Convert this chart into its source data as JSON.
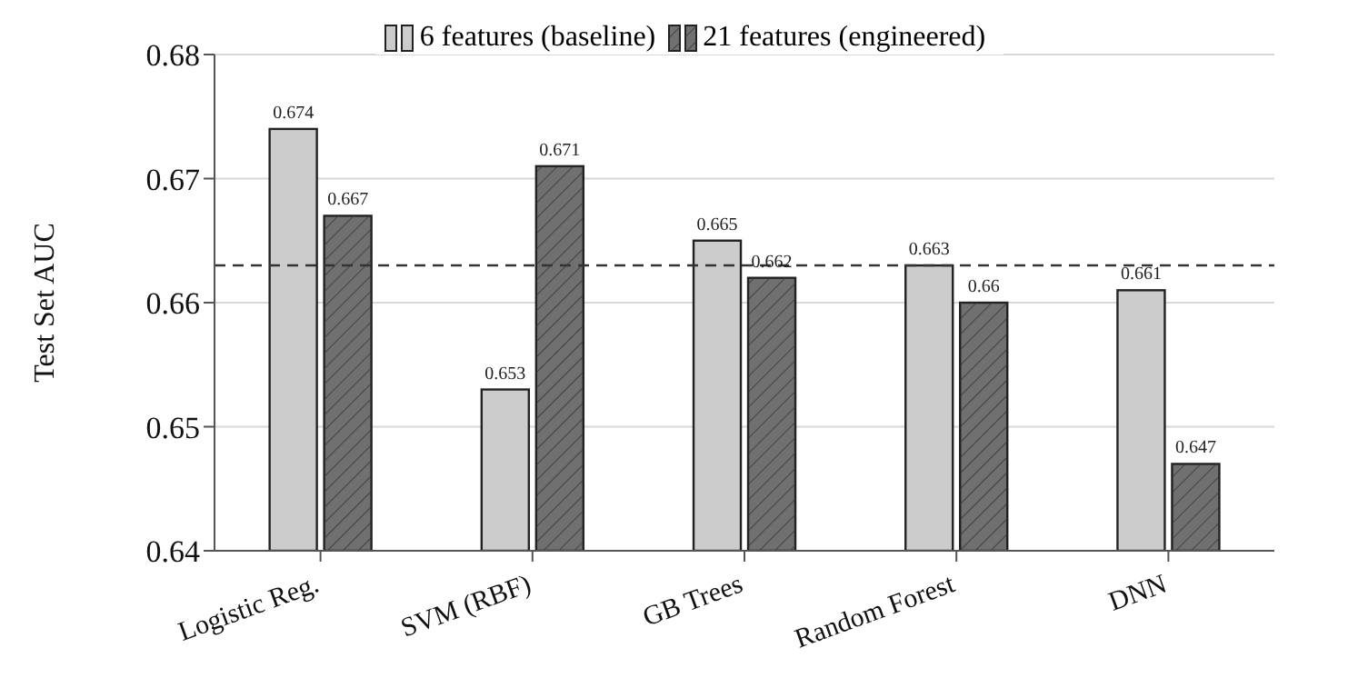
{
  "chart_data": {
    "type": "bar",
    "ylabel": "Test Set AUC",
    "categories": [
      "Logistic Reg.",
      "SVM (RBF)",
      "GB Trees",
      "Random Forest",
      "DNN"
    ],
    "series": [
      {
        "name": "6 features (baseline)",
        "color": "#cccccc",
        "values": [
          0.674,
          0.653,
          0.665,
          0.663,
          0.661
        ]
      },
      {
        "name": "21 features (engineered)",
        "color": "#707070",
        "values": [
          0.667,
          0.671,
          0.662,
          0.66,
          0.647
        ]
      }
    ],
    "ylim": [
      0.64,
      0.68
    ],
    "yticks": [
      {
        "value": 0.64,
        "label": "0.64"
      },
      {
        "value": 0.65,
        "label": "0.65"
      },
      {
        "value": 0.66,
        "label": "0.66"
      },
      {
        "value": 0.67,
        "label": "0.67"
      },
      {
        "value": 0.68,
        "label": "0.68"
      }
    ],
    "ref_lines": [
      {
        "axis": "y",
        "value": 0.663,
        "line_style": "dashed",
        "color": "#333333"
      }
    ],
    "data_labels": true,
    "grid": "y",
    "legend": "top"
  }
}
